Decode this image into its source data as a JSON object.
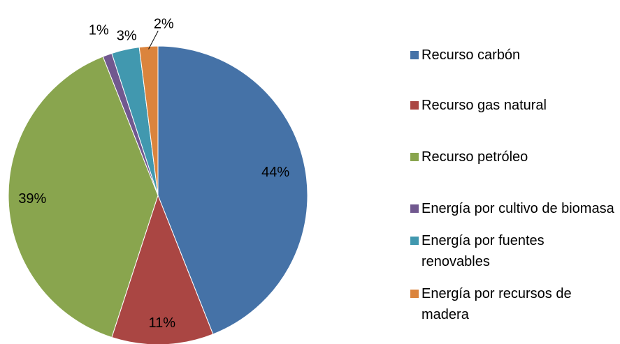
{
  "chart_data": {
    "type": "pie",
    "categories": [
      "Recurso carbón",
      "Recurso gas natural",
      "Recurso petróleo",
      "Energía por cultivo de biomasa",
      "Energía por fuentes renovables",
      "Energía por recursos de madera"
    ],
    "values": [
      44,
      11,
      39,
      1,
      3,
      2
    ],
    "value_labels": [
      "44%",
      "11%",
      "39%",
      "1%",
      "3%",
      "2%"
    ],
    "colors": [
      "#4572a7",
      "#aa4643",
      "#89a54e",
      "#71588f",
      "#4198af",
      "#db843d"
    ],
    "legend": "right"
  }
}
